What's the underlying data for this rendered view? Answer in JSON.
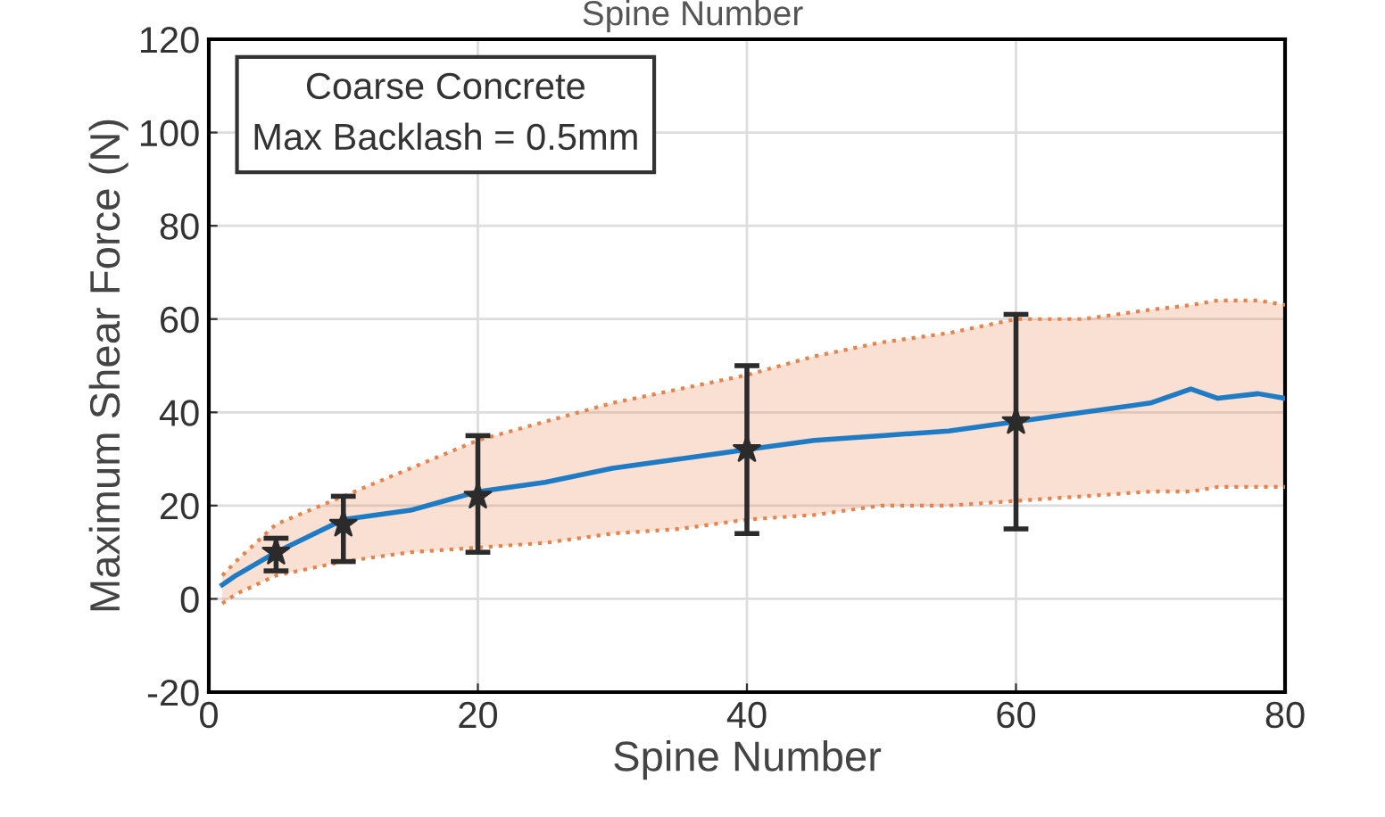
{
  "chart_data": {
    "type": "line",
    "xlabel": "Spine Number",
    "ylabel": "Maximum Shear Force (N)",
    "annotations": [
      "Spine Number",
      "Coarse Concrete\nMax Backlash = 0.5mm"
    ],
    "xlim": [
      0,
      80
    ],
    "xticks": [
      0,
      20,
      40,
      60,
      80
    ],
    "ylim": [
      -20,
      120
    ],
    "yticks": [
      -20,
      0,
      20,
      40,
      60,
      80,
      100,
      120
    ],
    "grid": true,
    "series": [
      {
        "color": "#1f7bc4",
        "line_style": "solid",
        "x": [
          1,
          2,
          5,
          10,
          15,
          20,
          25,
          30,
          35,
          40,
          45,
          50,
          55,
          60,
          65,
          70,
          73,
          75,
          78,
          80
        ],
        "values": [
          3,
          5,
          10,
          17,
          19,
          23,
          25,
          28,
          30,
          32,
          34,
          35,
          36,
          38,
          40,
          42,
          45,
          43,
          44,
          43
        ],
        "upper": [
          5,
          8,
          16,
          22,
          28,
          34,
          38,
          42,
          45,
          48,
          52,
          55,
          57,
          60,
          60,
          62,
          63,
          64,
          64,
          63
        ],
        "lower": [
          -1,
          1,
          5,
          8,
          10,
          11,
          12,
          14,
          15,
          17,
          18,
          20,
          20,
          21,
          22,
          23,
          23,
          24,
          24,
          24
        ]
      },
      {
        "color": "#e8824a",
        "line_style": "dotted",
        "x": [
          1,
          2,
          5,
          10,
          15,
          20,
          25,
          30,
          35,
          40,
          45,
          50,
          55,
          60,
          65,
          70,
          73,
          75,
          78,
          80
        ],
        "values": [
          5,
          8,
          16,
          22,
          28,
          34,
          38,
          42,
          45,
          48,
          52,
          55,
          57,
          60,
          60,
          62,
          63,
          64,
          64,
          63
        ]
      },
      {
        "color": "#e8824a",
        "line_style": "dotted",
        "x": [
          1,
          2,
          5,
          10,
          15,
          20,
          25,
          30,
          35,
          40,
          45,
          50,
          55,
          60,
          65,
          70,
          73,
          75,
          78,
          80
        ],
        "values": [
          -1,
          1,
          5,
          8,
          10,
          11,
          12,
          14,
          15,
          17,
          18,
          20,
          20,
          21,
          22,
          23,
          23,
          24,
          24,
          24
        ]
      },
      {
        "type": "scatter",
        "color": "#2b2b2b",
        "marker": "star",
        "x": [
          5,
          10,
          20,
          40,
          60
        ],
        "values": [
          10,
          16,
          22,
          32,
          38
        ],
        "errors": [
          [
            6,
            13
          ],
          [
            8,
            22
          ],
          [
            10,
            35
          ],
          [
            14,
            50
          ],
          [
            15,
            61
          ]
        ]
      }
    ]
  }
}
